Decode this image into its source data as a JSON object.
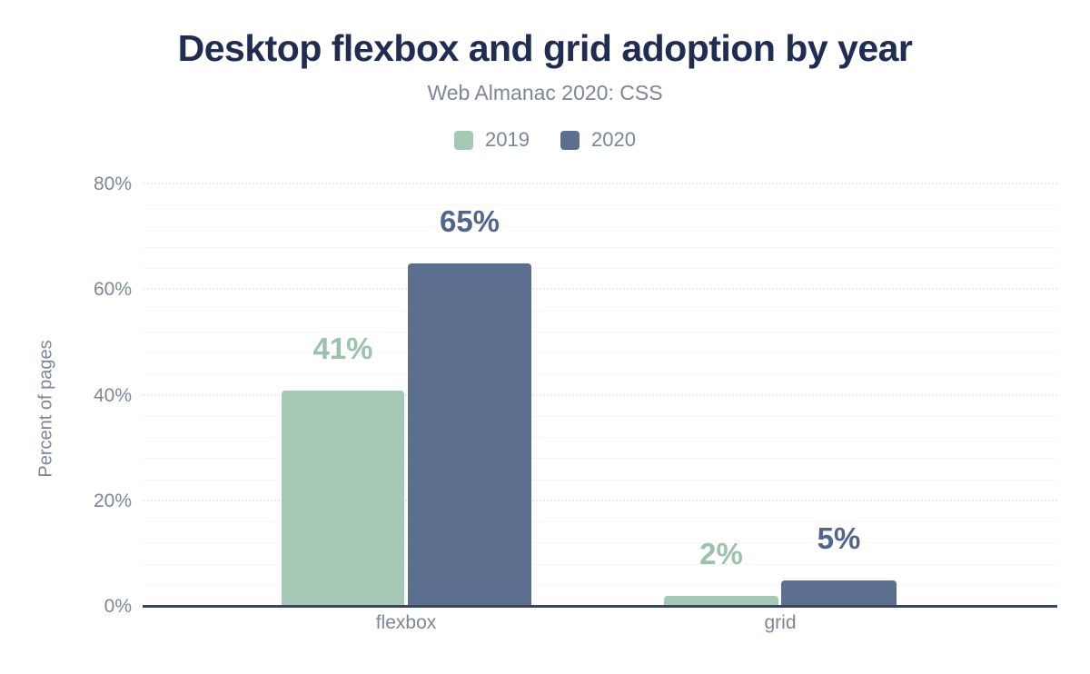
{
  "chart_data": {
    "type": "bar",
    "title": "Desktop flexbox and grid adoption by year",
    "subtitle": "Web Almanac 2020: CSS",
    "ylabel": "Percent of pages",
    "xlabel": "",
    "categories": [
      "flexbox",
      "grid"
    ],
    "series": [
      {
        "name": "2019",
        "color": "#a5c8b5",
        "label_color": "#9cc2ad",
        "values": [
          41,
          2
        ],
        "data_labels": [
          "41%",
          "2%"
        ]
      },
      {
        "name": "2020",
        "color": "#5c6f8f",
        "label_color": "#53658c",
        "values": [
          65,
          5
        ],
        "data_labels": [
          "65%",
          "5%"
        ]
      }
    ],
    "ylim": [
      0,
      80
    ],
    "yticks": [
      {
        "value": 0,
        "label": "0%"
      },
      {
        "value": 20,
        "label": "20%"
      },
      {
        "value": 40,
        "label": "40%"
      },
      {
        "value": 60,
        "label": "60%"
      },
      {
        "value": 80,
        "label": "80%"
      }
    ],
    "minor_grid_step": 4,
    "grid": true,
    "legend_position": "top",
    "colors": {
      "title_text": "#202c52",
      "muted_text": "#7c8694",
      "axis_line": "#3a455a",
      "major_gridline": "#ebebeb",
      "minor_gridline": "#f6f6f6",
      "background": "#ffffff"
    }
  }
}
